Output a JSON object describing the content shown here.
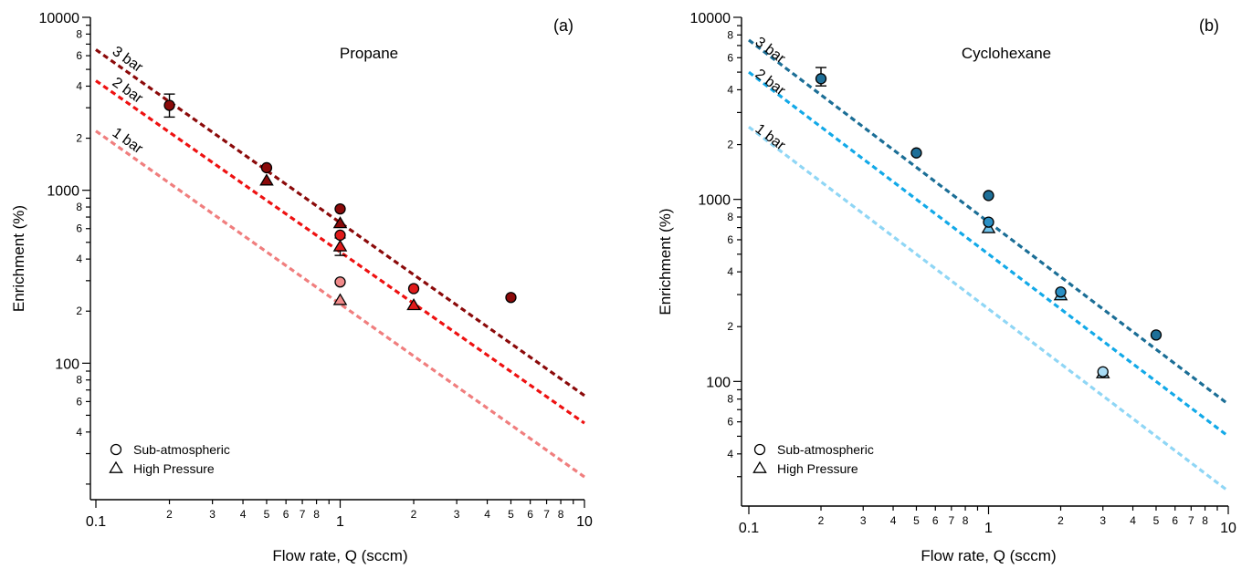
{
  "chart_data": [
    {
      "type": "scatter",
      "panel_label": "(a)",
      "title": "Propane",
      "xlabel": "Flow rate, Q (sccm)",
      "ylabel": "Enrichment (%)",
      "xscale": "log",
      "yscale": "log",
      "xlim": [
        0.1,
        10
      ],
      "ylim": [
        20,
        10000
      ],
      "x_major_ticks": [
        {
          "value": 0.1,
          "label": "0.1"
        },
        {
          "value": 1,
          "label": "1"
        },
        {
          "value": 10,
          "label": "10"
        }
      ],
      "x_minor_ticks": [
        {
          "value": 0.2,
          "label": "2"
        },
        {
          "value": 0.3,
          "label": "3"
        },
        {
          "value": 0.4,
          "label": "4"
        },
        {
          "value": 0.5,
          "label": "5"
        },
        {
          "value": 0.6,
          "label": "6"
        },
        {
          "value": 0.7,
          "label": "7"
        },
        {
          "value": 0.8,
          "label": "8"
        },
        {
          "value": 0.9,
          "label": ""
        },
        {
          "value": 2,
          "label": "2"
        },
        {
          "value": 3,
          "label": "3"
        },
        {
          "value": 4,
          "label": "4"
        },
        {
          "value": 5,
          "label": "5"
        },
        {
          "value": 6,
          "label": "6"
        },
        {
          "value": 7,
          "label": "7"
        },
        {
          "value": 8,
          "label": "8"
        },
        {
          "value": 9,
          "label": ""
        }
      ],
      "y_major_ticks": [
        {
          "value": 100,
          "label": "100"
        },
        {
          "value": 1000,
          "label": "1000"
        },
        {
          "value": 10000,
          "label": "10000"
        }
      ],
      "y_minor_ticks": [
        {
          "value": 20,
          "label": ""
        },
        {
          "value": 30,
          "label": ""
        },
        {
          "value": 40,
          "label": "4"
        },
        {
          "value": 50,
          "label": ""
        },
        {
          "value": 60,
          "label": "6"
        },
        {
          "value": 70,
          "label": ""
        },
        {
          "value": 80,
          "label": "8"
        },
        {
          "value": 90,
          "label": ""
        },
        {
          "value": 200,
          "label": "2"
        },
        {
          "value": 300,
          "label": ""
        },
        {
          "value": 400,
          "label": "4"
        },
        {
          "value": 500,
          "label": ""
        },
        {
          "value": 600,
          "label": "6"
        },
        {
          "value": 700,
          "label": ""
        },
        {
          "value": 800,
          "label": "8"
        },
        {
          "value": 900,
          "label": ""
        },
        {
          "value": 2000,
          "label": "2"
        },
        {
          "value": 3000,
          "label": ""
        },
        {
          "value": 4000,
          "label": "4"
        },
        {
          "value": 5000,
          "label": ""
        },
        {
          "value": 6000,
          "label": "6"
        },
        {
          "value": 7000,
          "label": ""
        },
        {
          "value": 8000,
          "label": "8"
        },
        {
          "value": 9000,
          "label": ""
        }
      ],
      "fit_lines": [
        {
          "label": "3 bar",
          "color": "#8b0a0a",
          "x": [
            0.1,
            10
          ],
          "y": [
            6500,
            65
          ]
        },
        {
          "label": "2 bar",
          "color": "#ee1111",
          "x": [
            0.1,
            10
          ],
          "y": [
            4300,
            45
          ]
        },
        {
          "label": "1 bar",
          "color": "#f07e7e",
          "x": [
            0.1,
            10
          ],
          "y": [
            2200,
            22
          ]
        }
      ],
      "series": [
        {
          "name": "Sub-atmospheric 3 bar",
          "marker": "circle",
          "color": "#8b0a0a",
          "points": [
            {
              "x": 0.2,
              "y": 3100,
              "err": [
                2650,
                3600
              ]
            },
            {
              "x": 0.5,
              "y": 1350
            },
            {
              "x": 1,
              "y": 780
            },
            {
              "x": 5,
              "y": 240
            }
          ]
        },
        {
          "name": "Sub-atmospheric 2 bar",
          "marker": "circle",
          "color": "#e01b1b",
          "points": [
            {
              "x": 1,
              "y": 550
            },
            {
              "x": 2,
              "y": 270
            }
          ]
        },
        {
          "name": "Sub-atmospheric 1 bar",
          "marker": "circle",
          "color": "#f08a8a",
          "points": [
            {
              "x": 1,
              "y": 295
            }
          ]
        },
        {
          "name": "High Pressure 3 bar",
          "marker": "triangle",
          "color": "#8b0a0a",
          "points": [
            {
              "x": 0.5,
              "y": 1130
            },
            {
              "x": 1,
              "y": 640
            }
          ]
        },
        {
          "name": "High Pressure 2 bar",
          "marker": "triangle",
          "color": "#e01b1b",
          "points": [
            {
              "x": 1,
              "y": 470,
              "err": [
                420,
                530
              ]
            },
            {
              "x": 2,
              "y": 215
            }
          ]
        },
        {
          "name": "High Pressure 1 bar",
          "marker": "triangle",
          "color": "#f08a8a",
          "points": [
            {
              "x": 1,
              "y": 230
            }
          ]
        }
      ],
      "legend": {
        "position": "bottom-left",
        "entries": [
          {
            "marker": "circle",
            "label": "Sub-atmospheric"
          },
          {
            "marker": "triangle",
            "label": "High Pressure"
          }
        ]
      }
    },
    {
      "type": "scatter",
      "panel_label": "(b)",
      "title": "Cyclohexane",
      "xlabel": "Flow rate, Q (sccm)",
      "ylabel": "Enrichment (%)",
      "xscale": "log",
      "yscale": "log",
      "xlim": [
        0.1,
        10
      ],
      "ylim": [
        20,
        10000
      ],
      "x_major_ticks": [
        {
          "value": 0.1,
          "label": "0.1"
        },
        {
          "value": 1,
          "label": "1"
        },
        {
          "value": 10,
          "label": "10"
        }
      ],
      "x_minor_ticks": [
        {
          "value": 0.2,
          "label": "2"
        },
        {
          "value": 0.3,
          "label": "3"
        },
        {
          "value": 0.4,
          "label": "4"
        },
        {
          "value": 0.5,
          "label": "5"
        },
        {
          "value": 0.6,
          "label": "6"
        },
        {
          "value": 0.7,
          "label": "7"
        },
        {
          "value": 0.8,
          "label": "8"
        },
        {
          "value": 0.9,
          "label": ""
        },
        {
          "value": 2,
          "label": "2"
        },
        {
          "value": 3,
          "label": "3"
        },
        {
          "value": 4,
          "label": "4"
        },
        {
          "value": 5,
          "label": "5"
        },
        {
          "value": 6,
          "label": "6"
        },
        {
          "value": 7,
          "label": "7"
        },
        {
          "value": 8,
          "label": "8"
        },
        {
          "value": 9,
          "label": ""
        }
      ],
      "y_major_ticks": [
        {
          "value": 100,
          "label": "100"
        },
        {
          "value": 1000,
          "label": "1000"
        },
        {
          "value": 10000,
          "label": "10000"
        }
      ],
      "y_minor_ticks": [
        {
          "value": 20,
          "label": ""
        },
        {
          "value": 30,
          "label": ""
        },
        {
          "value": 40,
          "label": "4"
        },
        {
          "value": 50,
          "label": ""
        },
        {
          "value": 60,
          "label": "6"
        },
        {
          "value": 70,
          "label": ""
        },
        {
          "value": 80,
          "label": "8"
        },
        {
          "value": 90,
          "label": ""
        },
        {
          "value": 200,
          "label": "2"
        },
        {
          "value": 300,
          "label": ""
        },
        {
          "value": 400,
          "label": "4"
        },
        {
          "value": 500,
          "label": ""
        },
        {
          "value": 600,
          "label": "6"
        },
        {
          "value": 700,
          "label": ""
        },
        {
          "value": 800,
          "label": "8"
        },
        {
          "value": 900,
          "label": ""
        },
        {
          "value": 2000,
          "label": "2"
        },
        {
          "value": 3000,
          "label": ""
        },
        {
          "value": 4000,
          "label": "4"
        },
        {
          "value": 5000,
          "label": ""
        },
        {
          "value": 6000,
          "label": "6"
        },
        {
          "value": 7000,
          "label": ""
        },
        {
          "value": 8000,
          "label": "8"
        },
        {
          "value": 9000,
          "label": ""
        }
      ],
      "fit_lines": [
        {
          "label": "3 bar",
          "color": "#1b6e96",
          "x": [
            0.1,
            10
          ],
          "y": [
            7500,
            75
          ]
        },
        {
          "label": "2 bar",
          "color": "#12a9e8",
          "x": [
            0.1,
            10
          ],
          "y": [
            5000,
            50
          ]
        },
        {
          "label": "1 bar",
          "color": "#8fd6f5",
          "x": [
            0.1,
            10
          ],
          "y": [
            2500,
            25
          ]
        }
      ],
      "series": [
        {
          "name": "Sub-atmospheric 3 bar",
          "marker": "circle",
          "color": "#1e6f98",
          "points": [
            {
              "x": 0.2,
              "y": 4600,
              "err": [
                4200,
                5300
              ]
            },
            {
              "x": 0.5,
              "y": 1800
            },
            {
              "x": 1,
              "y": 1050
            },
            {
              "x": 5,
              "y": 180
            }
          ]
        },
        {
          "name": "Sub-atmospheric 2 bar",
          "marker": "circle",
          "color": "#2a8fc4",
          "points": [
            {
              "x": 1,
              "y": 750
            },
            {
              "x": 2,
              "y": 310
            }
          ]
        },
        {
          "name": "Sub-atmospheric 1 bar",
          "marker": "circle",
          "color": "#a9dcf5",
          "points": [
            {
              "x": 3,
              "y": 113
            }
          ]
        },
        {
          "name": "High Pressure 2 bar",
          "marker": "triangle",
          "color": "#6fc3ec",
          "points": [
            {
              "x": 1,
              "y": 690
            },
            {
              "x": 2,
              "y": 295
            }
          ]
        },
        {
          "name": "High Pressure 1 bar",
          "marker": "triangle",
          "color": "#a9dcf5",
          "points": [
            {
              "x": 3,
              "y": 110
            }
          ]
        }
      ],
      "legend": {
        "position": "bottom-left",
        "entries": [
          {
            "marker": "circle",
            "label": "Sub-atmospheric"
          },
          {
            "marker": "triangle",
            "label": "High Pressure"
          }
        ]
      }
    }
  ]
}
